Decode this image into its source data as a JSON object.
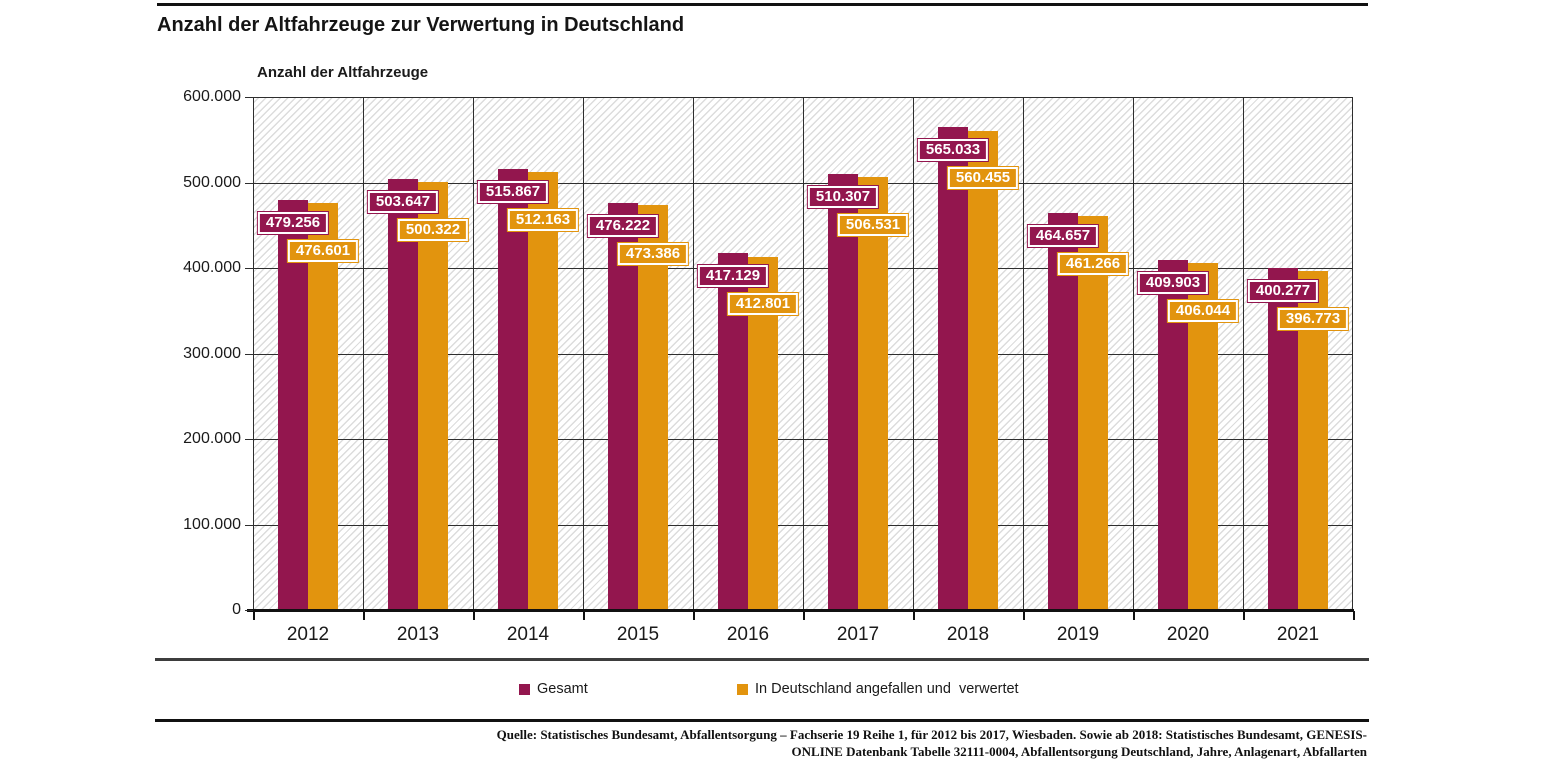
{
  "page": {
    "title": "Anzahl der Altfahrzeuge zur Verwertung in Deutschland"
  },
  "chart_data": {
    "type": "bar",
    "title": "Anzahl der Altfahrzeuge zur Verwertung in Deutschland",
    "ylabel": "Anzahl der Altfahrzeuge",
    "xlabel": "",
    "categories": [
      "2012",
      "2013",
      "2014",
      "2015",
      "2016",
      "2017",
      "2018",
      "2019",
      "2020",
      "2021"
    ],
    "series": [
      {
        "name": "Gesamt",
        "color": "#93164E",
        "values": [
          479256,
          503647,
          515867,
          476222,
          417129,
          510307,
          565033,
          464657,
          409903,
          400277
        ],
        "labels": [
          "479.256",
          "503.647",
          "515.867",
          "476.222",
          "417.129",
          "510.307",
          "565.033",
          "464.657",
          "409.903",
          "400.277"
        ]
      },
      {
        "name": "In Deutschland angefallen und  verwertet",
        "color": "#E2940E",
        "values": [
          476601,
          500322,
          512163,
          473386,
          412801,
          506531,
          560455,
          461266,
          406044,
          396773
        ],
        "labels": [
          "476.601",
          "500.322",
          "512.163",
          "473.386",
          "412.801",
          "506.531",
          "560.455",
          "461.266",
          "406.044",
          "396.773"
        ]
      }
    ],
    "ylim": [
      0,
      600000
    ],
    "yticks": [
      {
        "value": 600000,
        "label": "600.000"
      },
      {
        "value": 500000,
        "label": "500.000"
      },
      {
        "value": 400000,
        "label": "400.000"
      },
      {
        "value": 300000,
        "label": "300.000"
      },
      {
        "value": 200000,
        "label": "200.000"
      },
      {
        "value": 100000,
        "label": "100.000"
      },
      {
        "value": 0,
        "label": "0"
      }
    ],
    "grid": "on",
    "plot_background": "diagonal-hatch",
    "legend_position": "bottom",
    "colors": {
      "grid": "#2e2e2e",
      "axis": "#111111",
      "hatch": "#dcdcdc",
      "label_text": "#ffffff"
    }
  },
  "footer": {
    "source_line1": "Quelle: Statistisches Bundesamt, Abfallentsorgung – Fachserie 19 Reihe 1, für 2012 bis 2017, Wiesbaden. Sowie ab 2018: Statistisches Bundesamt, GENESIS-",
    "source_line2": "ONLINE Datenbank Tabelle 32111-0004, Abfallentsorgung Deutschland, Jahre, Anlagenart, Abfallarten"
  }
}
